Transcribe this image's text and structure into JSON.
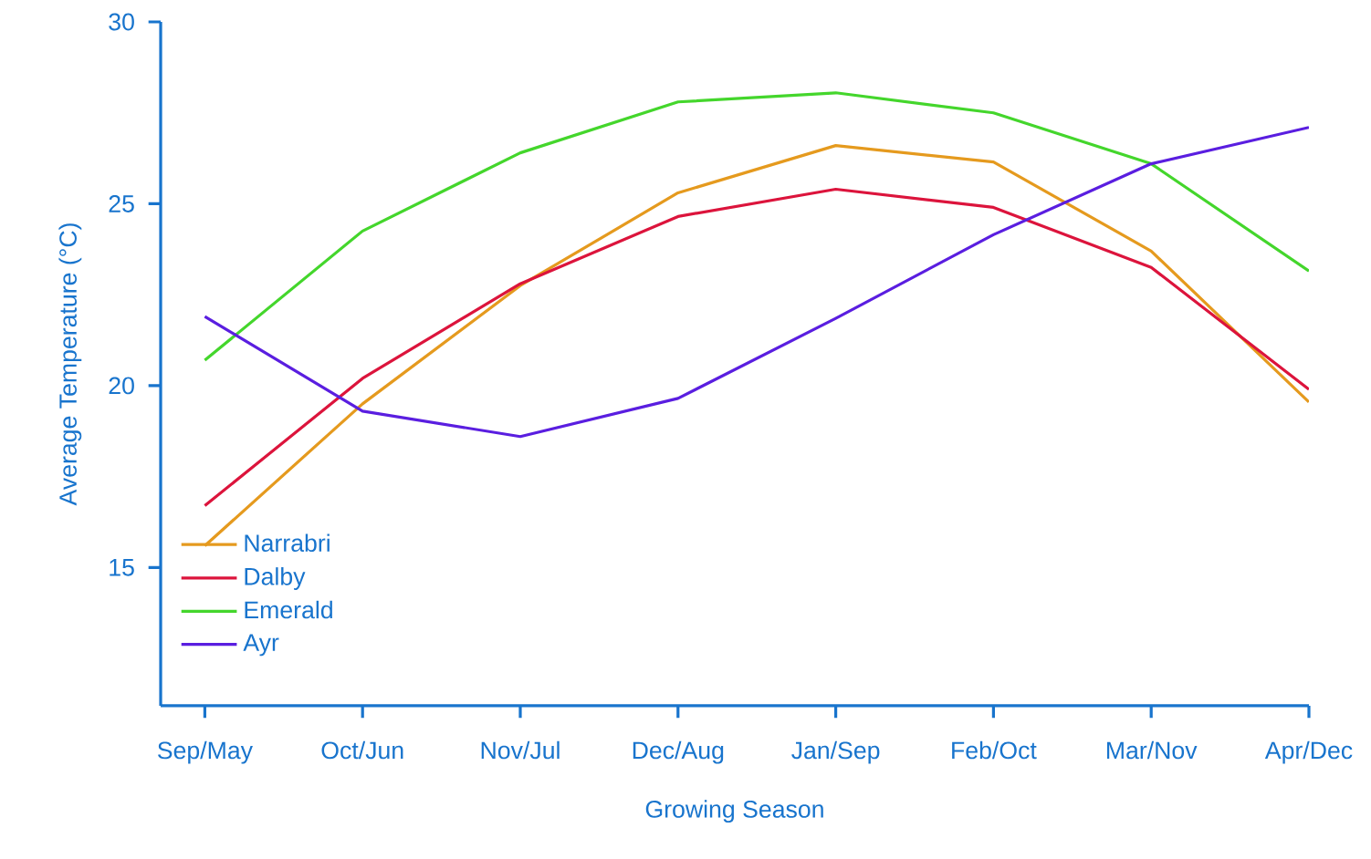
{
  "chart_data": {
    "type": "line",
    "xlabel": "Growing Season",
    "ylabel": "Average Temperature (°C)",
    "categories": [
      "Sep/May",
      "Oct/Jun",
      "Nov/Jul",
      "Dec/Aug",
      "Jan/Sep",
      "Feb/Oct",
      "Mar/Nov",
      "Apr/Dec"
    ],
    "ylim": [
      11.2,
      30
    ],
    "yticks": [
      15,
      20,
      25,
      30
    ],
    "legend": "bottom left",
    "series": [
      {
        "name": "Narrabri",
        "color": "#e59a1e",
        "values": [
          15.6,
          19.5,
          22.75,
          25.3,
          26.6,
          26.15,
          23.7,
          19.55
        ]
      },
      {
        "name": "Dalby",
        "color": "#dc143c",
        "values": [
          16.7,
          20.2,
          22.8,
          24.65,
          25.4,
          24.9,
          23.25,
          19.9
        ]
      },
      {
        "name": "Emerald",
        "color": "#44d62c",
        "values": [
          20.7,
          24.25,
          26.4,
          27.8,
          28.05,
          27.5,
          26.1,
          23.15
        ]
      },
      {
        "name": "Ayr",
        "color": "#5a1ee0",
        "values": [
          21.9,
          19.3,
          18.6,
          19.65,
          21.85,
          24.15,
          26.1,
          27.1
        ]
      }
    ]
  }
}
